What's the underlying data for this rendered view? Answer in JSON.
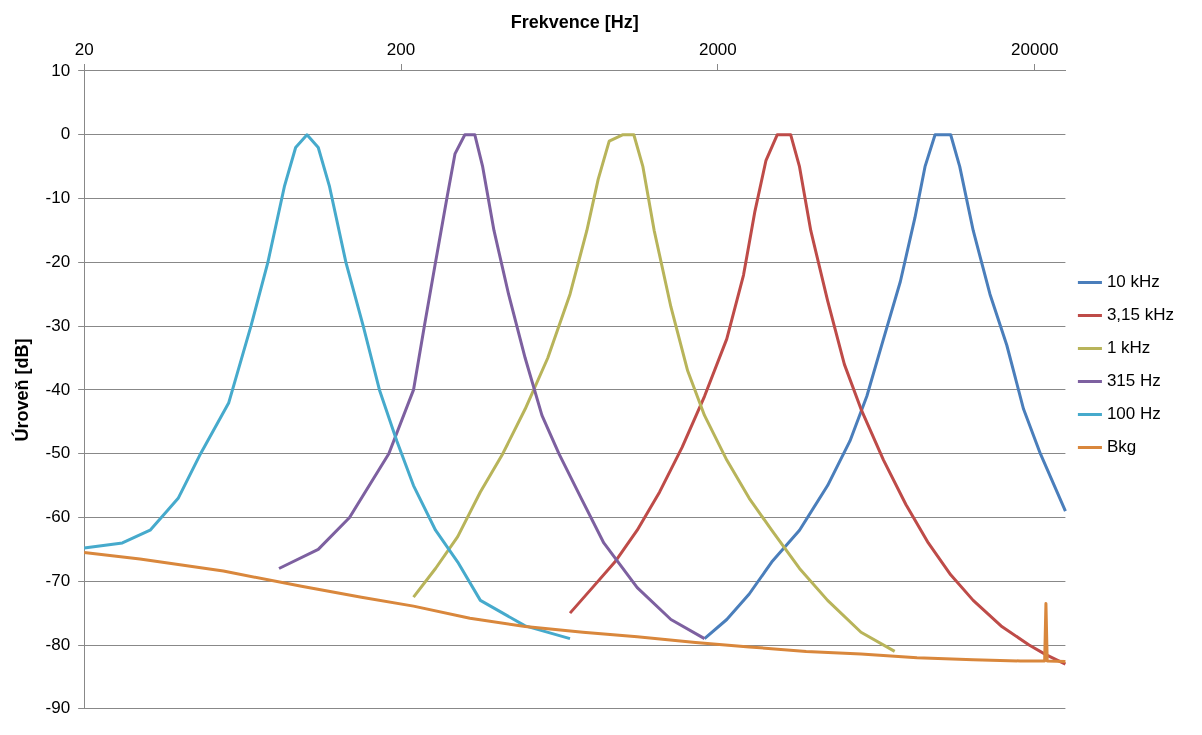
{
  "chart_data": {
    "type": "line",
    "xlabel": "Frekvence [Hz]",
    "ylabel": "Úroveň [dB]",
    "log": "x",
    "xlim": [
      20,
      25000
    ],
    "xticks": [
      20,
      200,
      2000,
      20000
    ],
    "ylim": [
      -90,
      10
    ],
    "yticks": [
      -90,
      -80,
      -70,
      -60,
      -50,
      -40,
      -30,
      -20,
      -10,
      0,
      10
    ],
    "grid": "y",
    "legend": "right",
    "marker": "none",
    "line_style": "solid",
    "series": [
      {
        "name": "10 kHz",
        "color": "#4a7ebb",
        "x": [
          1815,
          2134,
          2512,
          2957,
          3620,
          4440,
          5224,
          5904,
          6666,
          7534,
          8376,
          9012,
          9694,
          10860,
          11600,
          12790,
          14450,
          16330,
          18440,
          20840,
          25000
        ],
        "values": [
          -79,
          -76,
          -72,
          -67,
          -62,
          -55,
          -48,
          -41,
          -32,
          -23,
          -13,
          -5,
          0,
          0,
          -5,
          -15,
          -25,
          -33,
          -43,
          -50,
          -59
        ]
      },
      {
        "name": "3,15 kHz",
        "color": "#be4b48",
        "x": [
          683,
          804,
          946,
          1113,
          1310,
          1542,
          1815,
          2134,
          2410,
          2618,
          2838,
          3078,
          3396,
          3620,
          3928,
          4440,
          5016,
          5660,
          6666,
          7850,
          9230,
          10860,
          12790,
          15660,
          19200,
          21680,
          25000
        ],
        "values": [
          -75,
          -71,
          -67,
          -62,
          -56,
          -49,
          -41,
          -32,
          -22,
          -12,
          -4,
          0,
          0,
          -5,
          -15,
          -26,
          -36,
          -43,
          -51,
          -58,
          -64,
          -69,
          -73,
          -77,
          -80,
          -81.5,
          -83
        ]
      },
      {
        "name": "1 kHz",
        "color": "#b8b45a",
        "x": [
          219,
          257,
          302,
          356,
          419,
          493,
          581,
          683,
          772,
          838,
          908,
          1000,
          1086,
          1160,
          1259,
          1422,
          1606,
          1815,
          2134,
          2512,
          2957,
          3620,
          4440,
          5660,
          7230
        ],
        "values": [
          -72.5,
          -68,
          -63,
          -56,
          -50,
          -43,
          -35,
          -25,
          -15,
          -7,
          -1,
          0,
          0,
          -5,
          -15,
          -27,
          -37,
          -44,
          -51,
          -57,
          -62,
          -68,
          -73,
          -78,
          -81
        ]
      },
      {
        "name": "315 Hz",
        "color": "#7d60a0",
        "x": [
          82.4,
          109.6,
          137.6,
          183,
          219,
          237,
          257,
          279,
          296,
          318,
          342,
          362,
          393,
          437,
          493,
          557,
          630,
          741,
          873,
          1113,
          1422,
          1815
        ],
        "values": [
          -68,
          -65,
          -60,
          -50,
          -40,
          -30,
          -20,
          -10,
          -3,
          0,
          0,
          -5,
          -15,
          -25,
          -35,
          -44,
          -50,
          -57,
          -64,
          -71,
          -76,
          -79
        ]
      },
      {
        "name": "100 Hz",
        "color": "#46aacc",
        "x": [
          20,
          26.4,
          32.3,
          39.6,
          46.6,
          57.2,
          67.2,
          76,
          85.8,
          93,
          101,
          109.6,
          118.8,
          134,
          152,
          171,
          194,
          219,
          257,
          302,
          356,
          419,
          493,
          683
        ],
        "values": [
          -64.8,
          -64,
          -62,
          -57,
          -50,
          -42,
          -30,
          -20,
          -8,
          -2,
          0,
          -2,
          -8,
          -20,
          -30,
          -40,
          -48,
          -55,
          -62,
          -67,
          -73,
          -75,
          -77,
          -79
        ]
      },
      {
        "name": "Bkg",
        "color": "#d9873c",
        "x": [
          20,
          30,
          55,
          97,
          150,
          219,
          330,
          493,
          750,
          1113,
          1700,
          2512,
          3800,
          5660,
          8500,
          12790,
          18000,
          21500,
          21700,
          21900,
          25000
        ],
        "values": [
          -65.5,
          -66.5,
          -68.4,
          -70.8,
          -72.5,
          -73.9,
          -75.8,
          -77.1,
          -78,
          -78.7,
          -79.6,
          -80.3,
          -81,
          -81.4,
          -82,
          -82.3,
          -82.5,
          -82.5,
          -73.5,
          -82.5,
          -82.6
        ]
      }
    ]
  }
}
